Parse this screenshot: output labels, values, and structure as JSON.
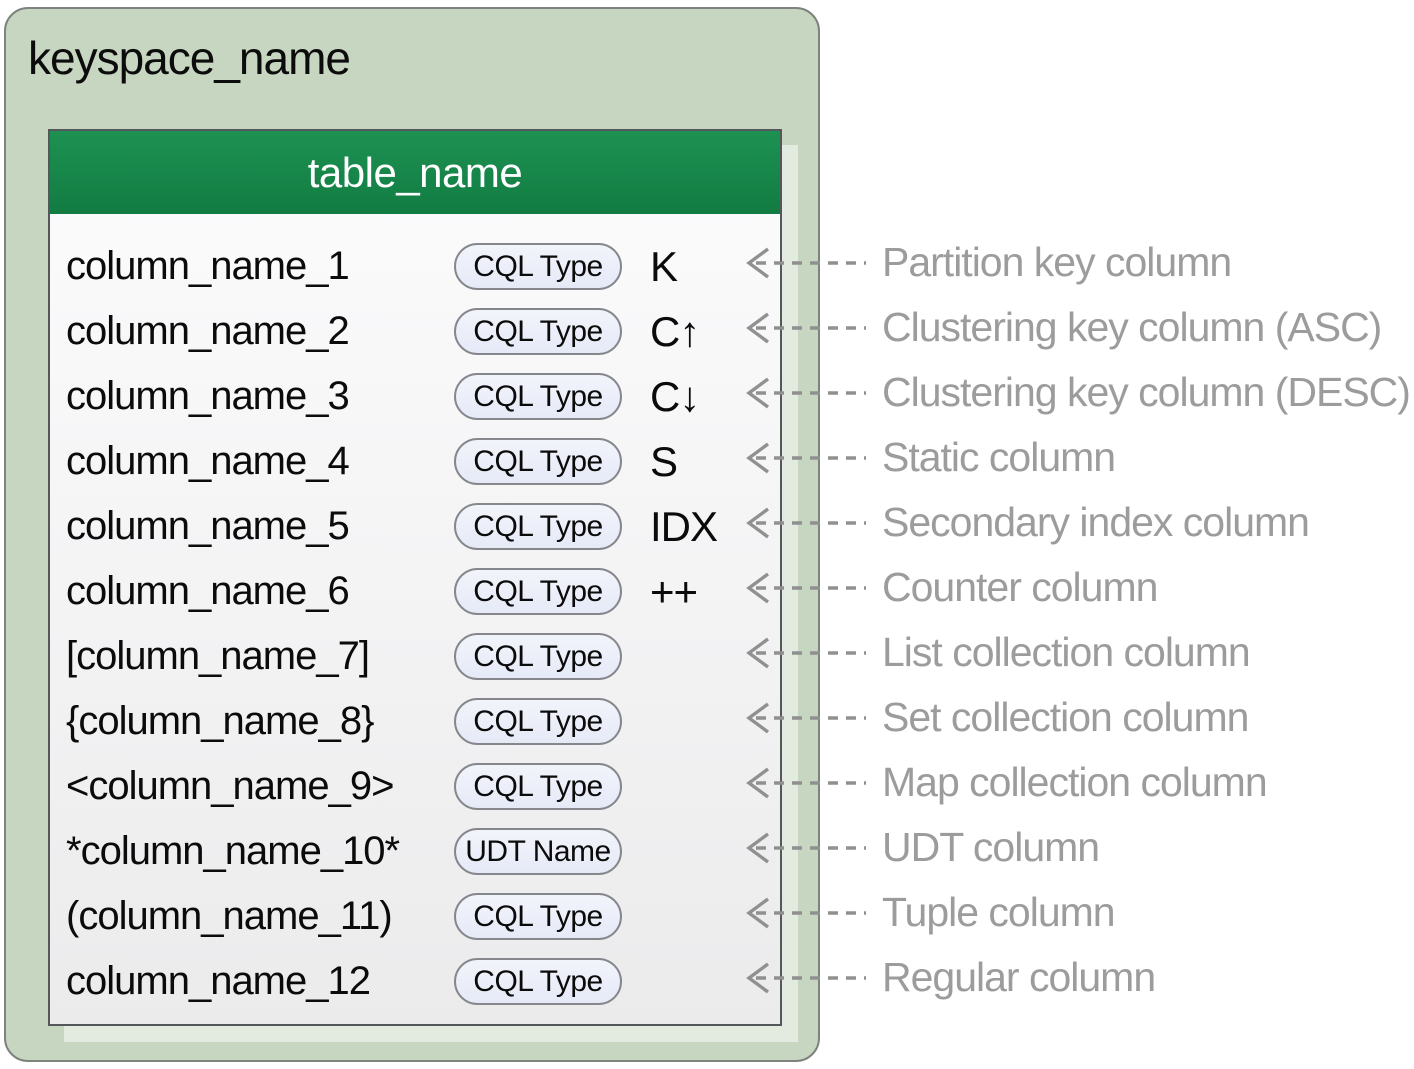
{
  "keyspace": {
    "name": "keyspace_name"
  },
  "table": {
    "name": "table_name",
    "rows": [
      {
        "column": "column_name_1",
        "type": "CQL Type",
        "indicator": "K",
        "label": "Partition key column"
      },
      {
        "column": "column_name_2",
        "type": "CQL Type",
        "indicator": "C↑",
        "label": "Clustering key column (ASC)"
      },
      {
        "column": "column_name_3",
        "type": "CQL Type",
        "indicator": "C↓",
        "label": "Clustering key column (DESC)"
      },
      {
        "column": "column_name_4",
        "type": "CQL Type",
        "indicator": "S",
        "label": "Static column"
      },
      {
        "column": "column_name_5",
        "type": "CQL Type",
        "indicator": "IDX",
        "label": "Secondary index column"
      },
      {
        "column": "column_name_6",
        "type": "CQL Type",
        "indicator": "++",
        "label": "Counter column"
      },
      {
        "column": "[column_name_7]",
        "type": "CQL Type",
        "indicator": "",
        "label": "List collection column"
      },
      {
        "column": "{column_name_8}",
        "type": "CQL Type",
        "indicator": "",
        "label": "Set collection column"
      },
      {
        "column": "<column_name_9>",
        "type": "CQL Type",
        "indicator": "",
        "label": "Map collection column"
      },
      {
        "column": "*column_name_10*",
        "type": "UDT Name",
        "indicator": "",
        "label": "UDT column"
      },
      {
        "column": "(column_name_11)",
        "type": "CQL Type",
        "indicator": "",
        "label": "Tuple column"
      },
      {
        "column": "column_name_12",
        "type": "CQL Type",
        "indicator": "",
        "label": "Regular column"
      }
    ]
  },
  "colors": {
    "keyspace_fill": "#c7d6c1",
    "keyspace_border": "#7e837e",
    "header_green": "#15894b",
    "table_border": "#55585a",
    "pill_fill": "#e9edf8",
    "pill_border": "#85878c",
    "arrow_gray": "#909090",
    "label_gray": "#9c9c9c"
  }
}
